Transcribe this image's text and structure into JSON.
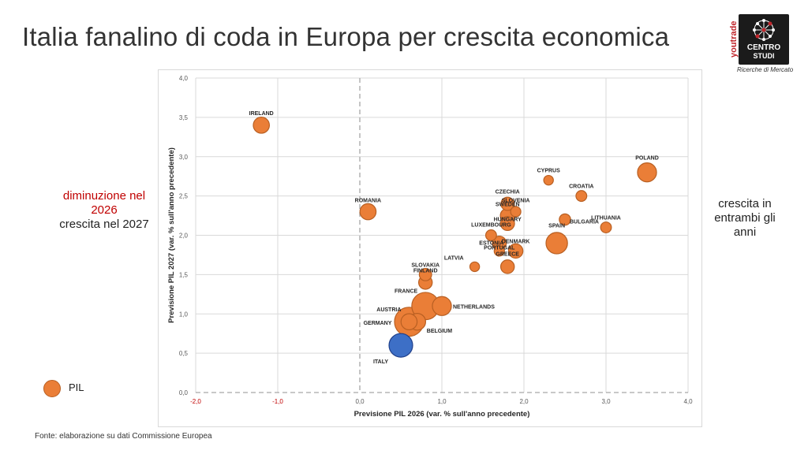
{
  "title": "Italia fanalino di coda in Europa per crescita economica",
  "logo": {
    "side_text": "youtrade",
    "line1": "CENTRO",
    "line2": "STUDI",
    "tagline": "Ricerche di Mercato"
  },
  "left_note": {
    "line_red": "diminuzione nel 2026",
    "line_black": "crescita nel 2027"
  },
  "right_note": "crescita in entrambi gli anni",
  "legend_label": "PIL",
  "source": "Fonte: elaborazione su dati Commissione Europea",
  "colors": {
    "bubble": "#ea7e37",
    "bubble_stroke": "#b85f22",
    "italy": "#3d6fc6",
    "italy_stroke": "#1f3f8a",
    "neg_tick": "#c00000",
    "grid": "#d9d9d9"
  },
  "chart_data": {
    "type": "scatter",
    "xlabel": "Previsione PIL 2026 (var. % sull'anno precedente)",
    "ylabel": "Previsione PIL 2027 (var. % sull'anno precedente)",
    "xlim": [
      -2.0,
      4.0
    ],
    "ylim": [
      0.0,
      4.0
    ],
    "xticks": [
      "-2,0",
      "-1,0",
      "0,0",
      "1,0",
      "2,0",
      "3,0",
      "4,0"
    ],
    "yticks": [
      "0,0",
      "0,5",
      "1,0",
      "1,5",
      "2,0",
      "2,5",
      "3,0",
      "3,5",
      "4,0"
    ],
    "grid": true,
    "series": [
      {
        "name": "PIL",
        "points": [
          {
            "label": "IRELAND",
            "x": -1.2,
            "y": 3.4,
            "size": 2
          },
          {
            "label": "ROMANIA",
            "x": 0.1,
            "y": 2.3,
            "size": 2
          },
          {
            "label": "POLAND",
            "x": 3.5,
            "y": 2.8,
            "size": 3
          },
          {
            "label": "CYPRUS",
            "x": 2.3,
            "y": 2.7,
            "size": 0.5
          },
          {
            "label": "CROATIA",
            "x": 2.7,
            "y": 2.5,
            "size": 0.7
          },
          {
            "label": "CZECHIA",
            "x": 1.8,
            "y": 2.4,
            "size": 1.2
          },
          {
            "label": "SLOVENIA",
            "x": 1.9,
            "y": 2.3,
            "size": 0.6
          },
          {
            "label": "SWEDEN",
            "x": 1.8,
            "y": 2.25,
            "size": 1.5
          },
          {
            "label": "HUNGARY",
            "x": 1.8,
            "y": 2.15,
            "size": 1.4
          },
          {
            "label": "BULGARIA",
            "x": 2.5,
            "y": 2.2,
            "size": 0.8
          },
          {
            "label": "LITHUANIA",
            "x": 3.0,
            "y": 2.1,
            "size": 0.7
          },
          {
            "label": "LUXEMBOURG",
            "x": 1.6,
            "y": 2.0,
            "size": 0.7
          },
          {
            "label": "PORTUGAL",
            "x": 1.7,
            "y": 1.9,
            "size": 1.4
          },
          {
            "label": "DENMARK",
            "x": 1.9,
            "y": 1.8,
            "size": 1.5
          },
          {
            "label": "SPAIN",
            "x": 2.4,
            "y": 1.9,
            "size": 4
          },
          {
            "label": "ESTONIA",
            "x": 1.7,
            "y": 1.8,
            "size": 0.6
          },
          {
            "label": "LATVIA",
            "x": 1.4,
            "y": 1.6,
            "size": 0.5
          },
          {
            "label": "GREECE",
            "x": 1.8,
            "y": 1.6,
            "size": 1.3
          },
          {
            "label": "SLOVAKIA",
            "x": 0.8,
            "y": 1.5,
            "size": 1.0
          },
          {
            "label": "FINLAND",
            "x": 0.8,
            "y": 1.4,
            "size": 1.3
          },
          {
            "label": "FRANCE",
            "x": 0.8,
            "y": 1.1,
            "size": 7
          },
          {
            "label": "NETHERLANDS",
            "x": 1.0,
            "y": 1.1,
            "size": 3
          },
          {
            "label": "AUSTRIA",
            "x": 0.6,
            "y": 0.9,
            "size": 2
          },
          {
            "label": "GERMANY",
            "x": 0.6,
            "y": 0.9,
            "size": 8
          },
          {
            "label": "BELGIUM",
            "x": 0.7,
            "y": 0.9,
            "size": 2.2
          },
          {
            "label": "ITALY",
            "x": 0.5,
            "y": 0.6,
            "size": 5
          }
        ]
      }
    ]
  }
}
